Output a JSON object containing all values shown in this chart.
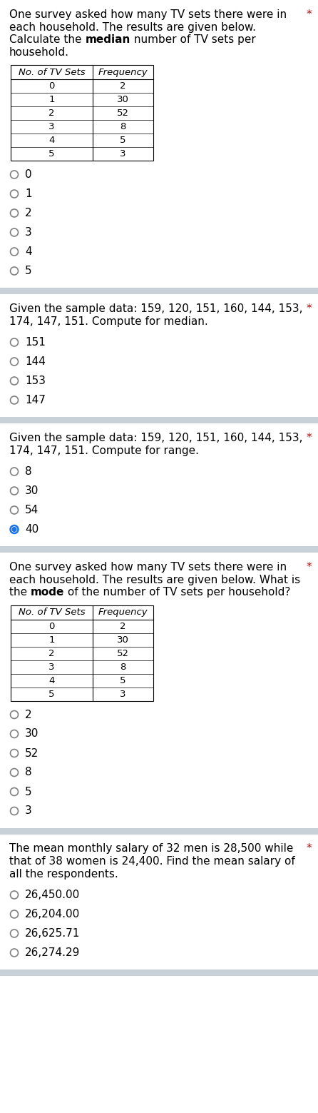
{
  "bg_color": "#ffffff",
  "divider_color": "#c8d0d8",
  "text_color": "#000000",
  "asterisk_color": "#cc0000",
  "selected_fill_color": "#1a73e8",
  "questions": [
    {
      "text_parts": [
        [
          [
            "One survey asked how many TV sets there were in",
            false
          ]
        ],
        [
          [
            "each household. The results are given below.",
            false
          ]
        ],
        [
          [
            "Calculate the ",
            false
          ],
          [
            "median",
            true
          ],
          [
            " number of TV sets per",
            false
          ]
        ],
        [
          [
            "household.",
            false
          ]
        ]
      ],
      "has_table": true,
      "table_headers": [
        "No. of TV Sets",
        "Frequency"
      ],
      "table_data": [
        [
          "0",
          "2"
        ],
        [
          "1",
          "30"
        ],
        [
          "2",
          "52"
        ],
        [
          "3",
          "8"
        ],
        [
          "4",
          "5"
        ],
        [
          "5",
          "3"
        ]
      ],
      "options": [
        "0",
        "1",
        "2",
        "3",
        "4",
        "5"
      ],
      "selected": null,
      "asterisk": true
    },
    {
      "text_parts": [
        [
          [
            "Given the sample data: 159, 120, 151, 160, 144, 153,",
            false
          ]
        ],
        [
          [
            "174, 147, 151. Compute for median.",
            false
          ]
        ]
      ],
      "has_table": false,
      "options": [
        "151",
        "144",
        "153",
        "147"
      ],
      "selected": null,
      "asterisk": true
    },
    {
      "text_parts": [
        [
          [
            "Given the sample data: 159, 120, 151, 160, 144, 153,",
            false
          ]
        ],
        [
          [
            "174, 147, 151. Compute for range.",
            false
          ]
        ]
      ],
      "has_table": false,
      "options": [
        "8",
        "30",
        "54",
        "40"
      ],
      "selected": "40",
      "asterisk": true
    },
    {
      "text_parts": [
        [
          [
            "One survey asked how many TV sets there were in",
            false
          ]
        ],
        [
          [
            "each household. The results are given below. What is",
            false
          ]
        ],
        [
          [
            "the ",
            false
          ],
          [
            "mode",
            true
          ],
          [
            " of the number of TV sets per household?",
            false
          ]
        ]
      ],
      "has_table": true,
      "table_headers": [
        "No. of TV Sets",
        "Frequency"
      ],
      "table_data": [
        [
          "0",
          "2"
        ],
        [
          "1",
          "30"
        ],
        [
          "2",
          "52"
        ],
        [
          "3",
          "8"
        ],
        [
          "4",
          "5"
        ],
        [
          "5",
          "3"
        ]
      ],
      "options": [
        "2",
        "30",
        "52",
        "8",
        "5",
        "3"
      ],
      "selected": null,
      "asterisk": true
    },
    {
      "text_parts": [
        [
          [
            "The mean monthly salary of 32 men is 28,500 while",
            false
          ]
        ],
        [
          [
            "that of 38 women is 24,400. Find the mean salary of",
            false
          ]
        ],
        [
          [
            "all the respondents.",
            false
          ]
        ]
      ],
      "has_table": false,
      "options": [
        "26,450.00",
        "26,204.00",
        "26,625.71",
        "26,274.29"
      ],
      "selected": null,
      "asterisk": true
    }
  ]
}
